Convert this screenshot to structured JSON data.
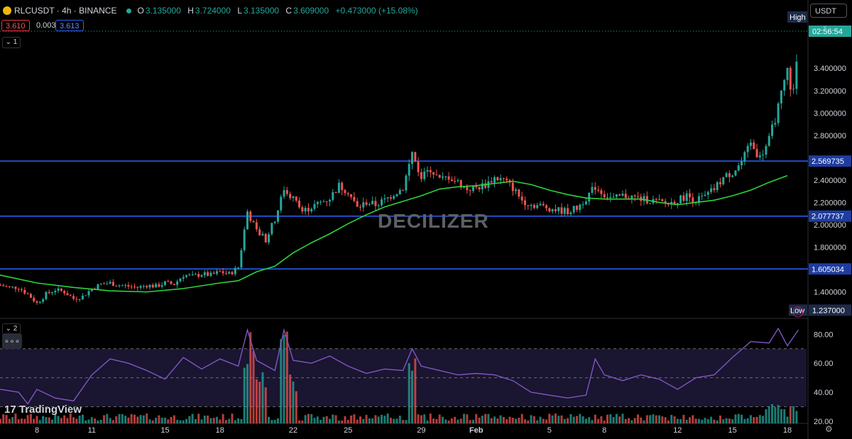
{
  "header": {
    "symbol": "RLCUSDT · 4h · BINANCE",
    "open_label": "O",
    "open": "3.135000",
    "high_label": "H",
    "high": "3.724000",
    "low_label": "L",
    "low": "3.135000",
    "close_label": "C",
    "close": "3.609000",
    "change": "+0.473000 (+15.08%)",
    "sell_price": "3.610",
    "spread": "0.003",
    "buy_price": "3.613",
    "pane1_collapse": "1",
    "pane2_collapse": "2",
    "currency": "USDT"
  },
  "brand": {
    "logo_text": "TradingView",
    "watermark": "DECILIZER"
  },
  "price_axis": {
    "ticks": [
      {
        "value": 3.4,
        "label": "3.400000"
      },
      {
        "value": 3.2,
        "label": "3.200000"
      },
      {
        "value": 3.0,
        "label": "3.000000"
      },
      {
        "value": 2.8,
        "label": "2.800000"
      },
      {
        "value": 2.4,
        "label": "2.400000"
      },
      {
        "value": 2.2,
        "label": "2.200000"
      },
      {
        "value": 2.0,
        "label": "2.000000"
      },
      {
        "value": 1.8,
        "label": "1.800000"
      },
      {
        "value": 1.4,
        "label": "1.400000"
      }
    ],
    "high_label": "High",
    "low_label": "Low",
    "countdown": "02:56:54",
    "low_value": "1.237000"
  },
  "rsi_axis": {
    "ticks": [
      {
        "value": 80,
        "label": "80.00"
      },
      {
        "value": 60,
        "label": "60.00"
      },
      {
        "value": 40,
        "label": "40.00"
      },
      {
        "value": 20,
        "label": "20.00"
      }
    ]
  },
  "time_axis": {
    "labels": [
      {
        "day": 8,
        "label": "8"
      },
      {
        "day": 11,
        "label": "11"
      },
      {
        "day": 15,
        "label": "15"
      },
      {
        "day": 18,
        "label": "18"
      },
      {
        "day": 22,
        "label": "22"
      },
      {
        "day": 25,
        "label": "25"
      },
      {
        "day": 29,
        "label": "29"
      },
      {
        "day": 32,
        "label": "Feb"
      },
      {
        "day": 36,
        "label": "5"
      },
      {
        "day": 39,
        "label": "8"
      },
      {
        "day": 43,
        "label": "12"
      },
      {
        "day": 46,
        "label": "15"
      },
      {
        "day": 49,
        "label": "18"
      }
    ]
  },
  "chart_data": {
    "type": "candlestick",
    "interval": "4h",
    "ylim": [
      1.22,
      3.82
    ],
    "rsi_ylim": [
      18,
      88
    ],
    "horizontal_levels": [
      {
        "value": 2.569735,
        "label": "2.569735"
      },
      {
        "value": 2.077737,
        "label": "2.077737"
      },
      {
        "value": 1.605034,
        "label": "1.605034"
      }
    ],
    "close_path": [
      [
        6,
        1.46
      ],
      [
        6.5,
        1.44
      ],
      [
        7,
        1.44
      ],
      [
        7.5,
        1.38
      ],
      [
        8,
        1.3
      ],
      [
        8.5,
        1.38
      ],
      [
        9,
        1.42
      ],
      [
        9.5,
        1.4
      ],
      [
        10,
        1.34
      ],
      [
        10.5,
        1.36
      ],
      [
        11,
        1.43
      ],
      [
        11.5,
        1.47
      ],
      [
        12,
        1.48
      ],
      [
        12.5,
        1.46
      ],
      [
        13,
        1.45
      ],
      [
        13.5,
        1.44
      ],
      [
        14,
        1.46
      ],
      [
        14.5,
        1.45
      ],
      [
        15,
        1.48
      ],
      [
        15.5,
        1.47
      ],
      [
        16,
        1.55
      ],
      [
        16.5,
        1.54
      ],
      [
        17,
        1.56
      ],
      [
        17.5,
        1.55
      ],
      [
        18,
        1.58
      ],
      [
        18.5,
        1.56
      ],
      [
        19,
        1.62
      ],
      [
        19.5,
        2.12
      ],
      [
        20,
        1.94
      ],
      [
        20.5,
        1.87
      ],
      [
        21,
        2.05
      ],
      [
        21.5,
        2.32
      ],
      [
        22,
        2.24
      ],
      [
        22.5,
        2.12
      ],
      [
        23,
        2.16
      ],
      [
        23.5,
        2.2
      ],
      [
        24,
        2.24
      ],
      [
        24.5,
        2.35
      ],
      [
        25,
        2.3
      ],
      [
        25.5,
        2.15
      ],
      [
        26,
        2.2
      ],
      [
        26.5,
        2.18
      ],
      [
        27,
        2.22
      ],
      [
        27.5,
        2.28
      ],
      [
        28,
        2.33
      ],
      [
        28.5,
        2.64
      ],
      [
        29,
        2.42
      ],
      [
        29.5,
        2.5
      ],
      [
        30,
        2.4
      ],
      [
        30.5,
        2.43
      ],
      [
        31,
        2.38
      ],
      [
        31.5,
        2.32
      ],
      [
        32,
        2.33
      ],
      [
        32.5,
        2.36
      ],
      [
        33,
        2.42
      ],
      [
        33.5,
        2.4
      ],
      [
        34,
        2.33
      ],
      [
        34.5,
        2.22
      ],
      [
        35,
        2.18
      ],
      [
        35.5,
        2.17
      ],
      [
        36,
        2.15
      ],
      [
        36.5,
        2.13
      ],
      [
        37,
        2.12
      ],
      [
        37.5,
        2.15
      ],
      [
        38,
        2.24
      ],
      [
        38.5,
        2.34
      ],
      [
        39,
        2.27
      ],
      [
        39.5,
        2.23
      ],
      [
        40,
        2.26
      ],
      [
        40.5,
        2.25
      ],
      [
        41,
        2.23
      ],
      [
        41.5,
        2.22
      ],
      [
        42,
        2.2
      ],
      [
        42.5,
        2.19
      ],
      [
        43,
        2.22
      ],
      [
        43.5,
        2.26
      ],
      [
        44,
        2.22
      ],
      [
        44.5,
        2.25
      ],
      [
        45,
        2.32
      ],
      [
        45.5,
        2.42
      ],
      [
        46,
        2.47
      ],
      [
        46.5,
        2.56
      ],
      [
        47,
        2.72
      ],
      [
        47.5,
        2.6
      ],
      [
        48,
        2.76
      ],
      [
        48.5,
        3.05
      ],
      [
        49,
        3.38
      ],
      [
        49.3,
        3.14
      ],
      [
        49.6,
        3.61
      ]
    ],
    "ma": [
      [
        4,
        1.66
      ],
      [
        6,
        1.55
      ],
      [
        8,
        1.48
      ],
      [
        10,
        1.44
      ],
      [
        12,
        1.41
      ],
      [
        14,
        1.4
      ],
      [
        16,
        1.43
      ],
      [
        18,
        1.48
      ],
      [
        19,
        1.5
      ],
      [
        20,
        1.58
      ],
      [
        21,
        1.63
      ],
      [
        22,
        1.75
      ],
      [
        23,
        1.84
      ],
      [
        24,
        1.92
      ],
      [
        25,
        2.01
      ],
      [
        26,
        2.09
      ],
      [
        27,
        2.16
      ],
      [
        28,
        2.21
      ],
      [
        29,
        2.26
      ],
      [
        30,
        2.32
      ],
      [
        31,
        2.34
      ],
      [
        32,
        2.35
      ],
      [
        33,
        2.37
      ],
      [
        34,
        2.39
      ],
      [
        35,
        2.36
      ],
      [
        36,
        2.31
      ],
      [
        37,
        2.27
      ],
      [
        38,
        2.24
      ],
      [
        39,
        2.23
      ],
      [
        40,
        2.23
      ],
      [
        41,
        2.23
      ],
      [
        42,
        2.2
      ],
      [
        43,
        2.18
      ],
      [
        44,
        2.2
      ],
      [
        45,
        2.22
      ],
      [
        46,
        2.26
      ],
      [
        47,
        2.31
      ],
      [
        48,
        2.38
      ],
      [
        49,
        2.44
      ]
    ],
    "rsi": [
      [
        4,
        49
      ],
      [
        6,
        42
      ],
      [
        7,
        40
      ],
      [
        7.5,
        32
      ],
      [
        8,
        42
      ],
      [
        9,
        36
      ],
      [
        10,
        34
      ],
      [
        11,
        52
      ],
      [
        12,
        63
      ],
      [
        13,
        60
      ],
      [
        14,
        55
      ],
      [
        15,
        49
      ],
      [
        16,
        64
      ],
      [
        17,
        56
      ],
      [
        18,
        63
      ],
      [
        19,
        58
      ],
      [
        19.5,
        83
      ],
      [
        20,
        62
      ],
      [
        21,
        55
      ],
      [
        21.5,
        83
      ],
      [
        22,
        62
      ],
      [
        23,
        60
      ],
      [
        24,
        65
      ],
      [
        25,
        58
      ],
      [
        26,
        53
      ],
      [
        27,
        56
      ],
      [
        28,
        55
      ],
      [
        28.5,
        70
      ],
      [
        29,
        58
      ],
      [
        30,
        55
      ],
      [
        31,
        52
      ],
      [
        32,
        53
      ],
      [
        33,
        52
      ],
      [
        34,
        48
      ],
      [
        35,
        40
      ],
      [
        36,
        38
      ],
      [
        37,
        36
      ],
      [
        38,
        38
      ],
      [
        38.5,
        63
      ],
      [
        39,
        52
      ],
      [
        40,
        48
      ],
      [
        41,
        52
      ],
      [
        42,
        49
      ],
      [
        43,
        42
      ],
      [
        44,
        50
      ],
      [
        45,
        52
      ],
      [
        46,
        64
      ],
      [
        47,
        75
      ],
      [
        48,
        74
      ],
      [
        48.5,
        84
      ],
      [
        49,
        72
      ],
      [
        49.6,
        83
      ]
    ],
    "volume_spikes": [
      [
        19.5,
        82
      ],
      [
        20,
        68
      ],
      [
        21.5,
        85
      ],
      [
        28.5,
        70
      ],
      [
        22,
        55
      ],
      [
        20.3,
        58
      ]
    ]
  }
}
